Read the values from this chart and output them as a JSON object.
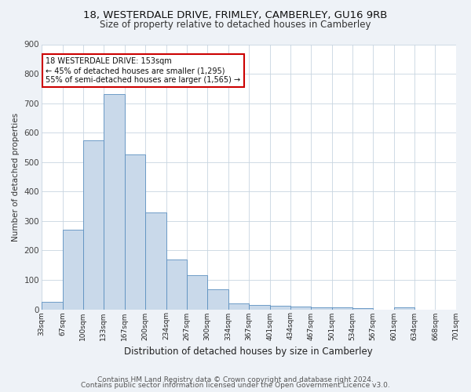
{
  "title1": "18, WESTERDALE DRIVE, FRIMLEY, CAMBERLEY, GU16 9RB",
  "title2": "Size of property relative to detached houses in Camberley",
  "xlabel": "Distribution of detached houses by size in Camberley",
  "ylabel": "Number of detached properties",
  "footnote1": "Contains HM Land Registry data © Crown copyright and database right 2024.",
  "footnote2": "Contains public sector information licensed under the Open Government Licence v3.0.",
  "bin_labels": [
    "33sqm",
    "67sqm",
    "100sqm",
    "133sqm",
    "167sqm",
    "200sqm",
    "234sqm",
    "267sqm",
    "300sqm",
    "334sqm",
    "367sqm",
    "401sqm",
    "434sqm",
    "467sqm",
    "501sqm",
    "534sqm",
    "567sqm",
    "601sqm",
    "634sqm",
    "668sqm",
    "701sqm"
  ],
  "bin_edges": [
    33,
    67,
    100,
    133,
    167,
    200,
    234,
    267,
    300,
    334,
    367,
    401,
    434,
    467,
    501,
    534,
    567,
    601,
    634,
    668,
    701
  ],
  "bar_heights": [
    25,
    270,
    575,
    730,
    525,
    330,
    170,
    115,
    67,
    20,
    15,
    13,
    10,
    8,
    7,
    5,
    0,
    7,
    0,
    0,
    0
  ],
  "bar_color": "#c9d9ea",
  "bar_edge_color": "#5b8fc0",
  "annotation_box_text": "18 WESTERDALE DRIVE: 153sqm\n← 45% of detached houses are smaller (1,295)\n55% of semi-detached houses are larger (1,565) →",
  "annotation_box_color": "#ffffff",
  "annotation_box_edge_color": "#cc0000",
  "ylim": [
    0,
    900
  ],
  "yticks": [
    0,
    100,
    200,
    300,
    400,
    500,
    600,
    700,
    800,
    900
  ],
  "bg_color": "#eef2f7",
  "plot_bg_color": "#ffffff",
  "grid_color": "#c8d4e0",
  "title1_fontsize": 9.5,
  "title2_fontsize": 8.5,
  "xlabel_fontsize": 8.5,
  "ylabel_fontsize": 7.5,
  "footnote_fontsize": 6.5,
  "ann_fontsize": 7.0
}
